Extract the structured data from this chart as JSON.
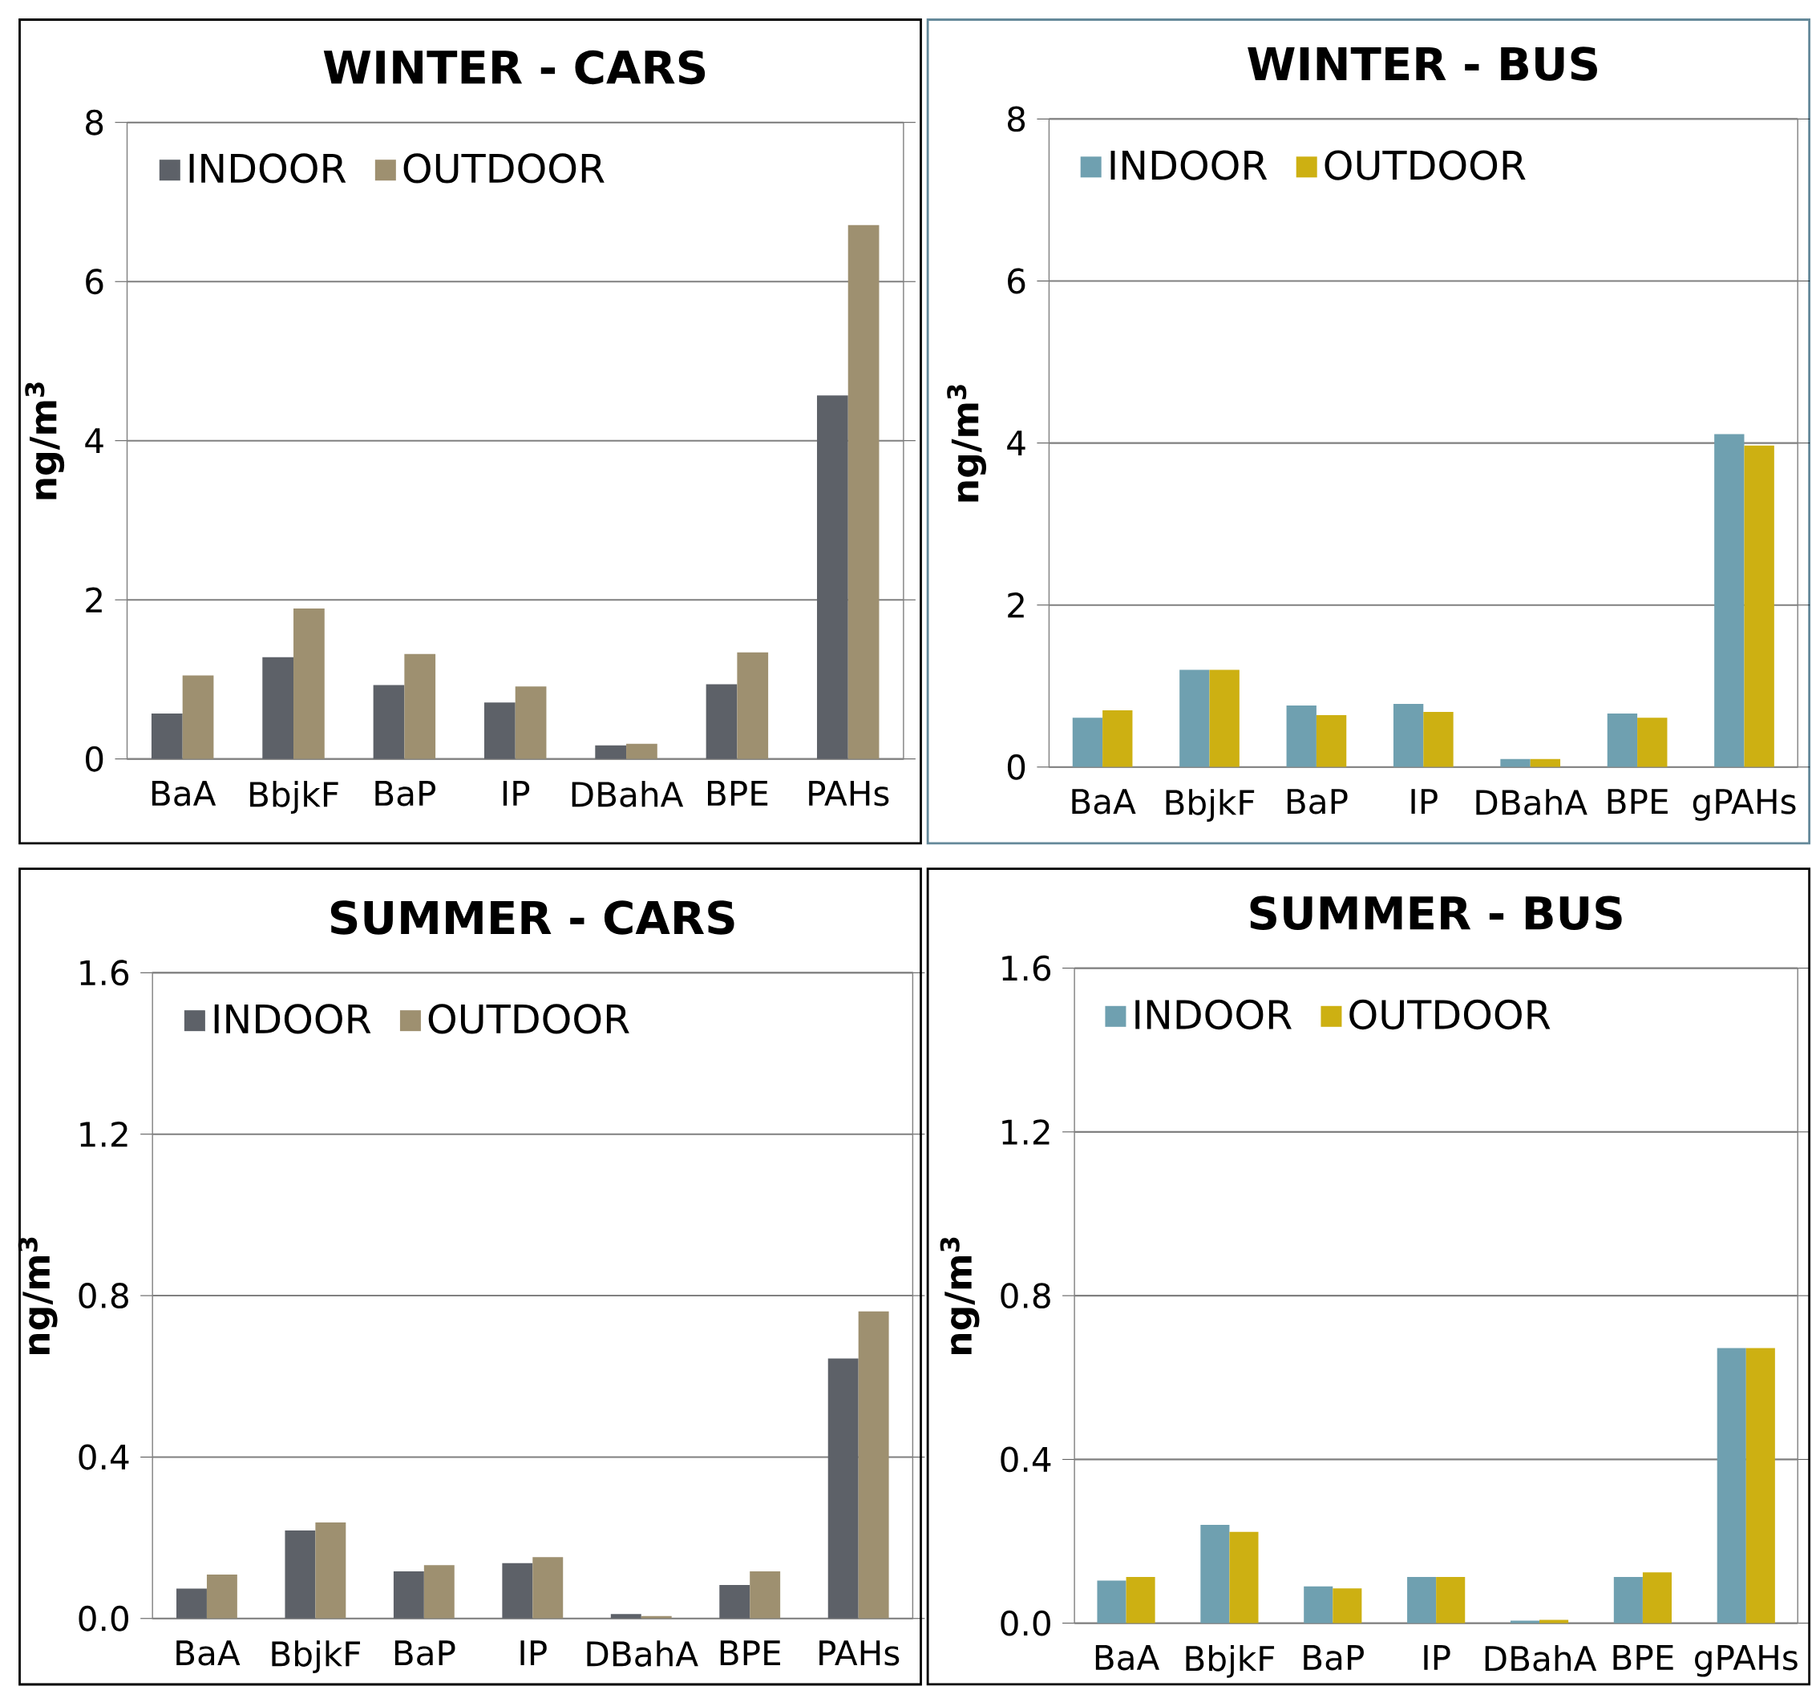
{
  "chart_data": [
    {
      "type": "bar",
      "title": "**WINTER - CARS**",
      "ylabel": "**ng/m$^{3}$**",
      "categories": [
        "BaA",
        "BbjkF",
        "BaP",
        "IP",
        "DBahA",
        "BPE",
        "PAHs"
      ],
      "series": [
        {
          "name": "INDOOR",
          "color": "#5d6168",
          "values": [
            0.57,
            1.28,
            0.93,
            0.71,
            0.17,
            0.94,
            4.57
          ]
        },
        {
          "name": "OUTDOOR",
          "color": "#9e9070",
          "values": [
            1.05,
            1.89,
            1.32,
            0.91,
            0.19,
            1.34,
            6.71
          ]
        }
      ],
      "ylim": [
        0,
        8
      ],
      "yticks": [
        0,
        2,
        4,
        6,
        8
      ],
      "grid": "y",
      "legend": "top left"
    },
    {
      "type": "bar",
      "title": "**WINTER - BUS**",
      "ylabel": "**ng/m$^{3}$**",
      "categories": [
        "BaA",
        "BbjkF",
        "BaP",
        "IP",
        "DBahA",
        "BPE",
        "gPAHs"
      ],
      "series": [
        {
          "name": "INDOOR",
          "color": "#6fa0b0",
          "values": [
            0.61,
            1.2,
            0.76,
            0.78,
            0.1,
            0.66,
            4.11
          ]
        },
        {
          "name": "OUTDOOR",
          "color": "#cdb012",
          "values": [
            0.7,
            1.2,
            0.64,
            0.68,
            0.1,
            0.61,
            3.97
          ]
        }
      ],
      "ylim": [
        0,
        8
      ],
      "yticks": [
        0,
        2,
        4,
        6,
        8
      ],
      "grid": "y",
      "legend": "top left"
    },
    {
      "type": "bar",
      "title": "**SUMMER - CARS**",
      "ylabel": "**ng/m$^{3}$**",
      "categories": [
        "BaA",
        "BbjkF",
        "BaP",
        "IP",
        "DBahA",
        "BPE",
        "PAHs"
      ],
      "series": [
        {
          "name": "INDOOR",
          "color": "#5d6168",
          "values": [
            0.074,
            0.218,
            0.117,
            0.137,
            0.011,
            0.083,
            0.644
          ]
        },
        {
          "name": "OUTDOOR",
          "color": "#9e9070",
          "values": [
            0.109,
            0.238,
            0.132,
            0.152,
            0.006,
            0.117,
            0.761
          ]
        }
      ],
      "ylim": [
        0,
        1.6
      ],
      "yticks": [
        {
          "value": 0,
          "label": "0.0"
        },
        0.4,
        0.8,
        1.2,
        1.6
      ],
      "grid": "y",
      "legend": "top left"
    },
    {
      "type": "bar",
      "title": "**SUMMER - BUS**",
      "ylabel": "**ng/m$^{3}$**",
      "categories": [
        "BaA",
        "BbjkF",
        "BaP",
        "IP",
        "DBahA",
        "BPE",
        "gPAHs"
      ],
      "series": [
        {
          "name": "INDOOR",
          "color": "#6fa0b0",
          "values": [
            0.104,
            0.24,
            0.09,
            0.113,
            0.006,
            0.113,
            0.672
          ]
        },
        {
          "name": "OUTDOOR",
          "color": "#cdb012",
          "values": [
            0.113,
            0.223,
            0.085,
            0.113,
            0.008,
            0.124,
            0.672
          ]
        }
      ],
      "ylim": [
        0,
        1.6
      ],
      "yticks": [
        {
          "value": 0,
          "label": "0.0"
        },
        0.4,
        0.8,
        1.2,
        1.6
      ],
      "grid": "y",
      "legend": "top left"
    }
  ]
}
